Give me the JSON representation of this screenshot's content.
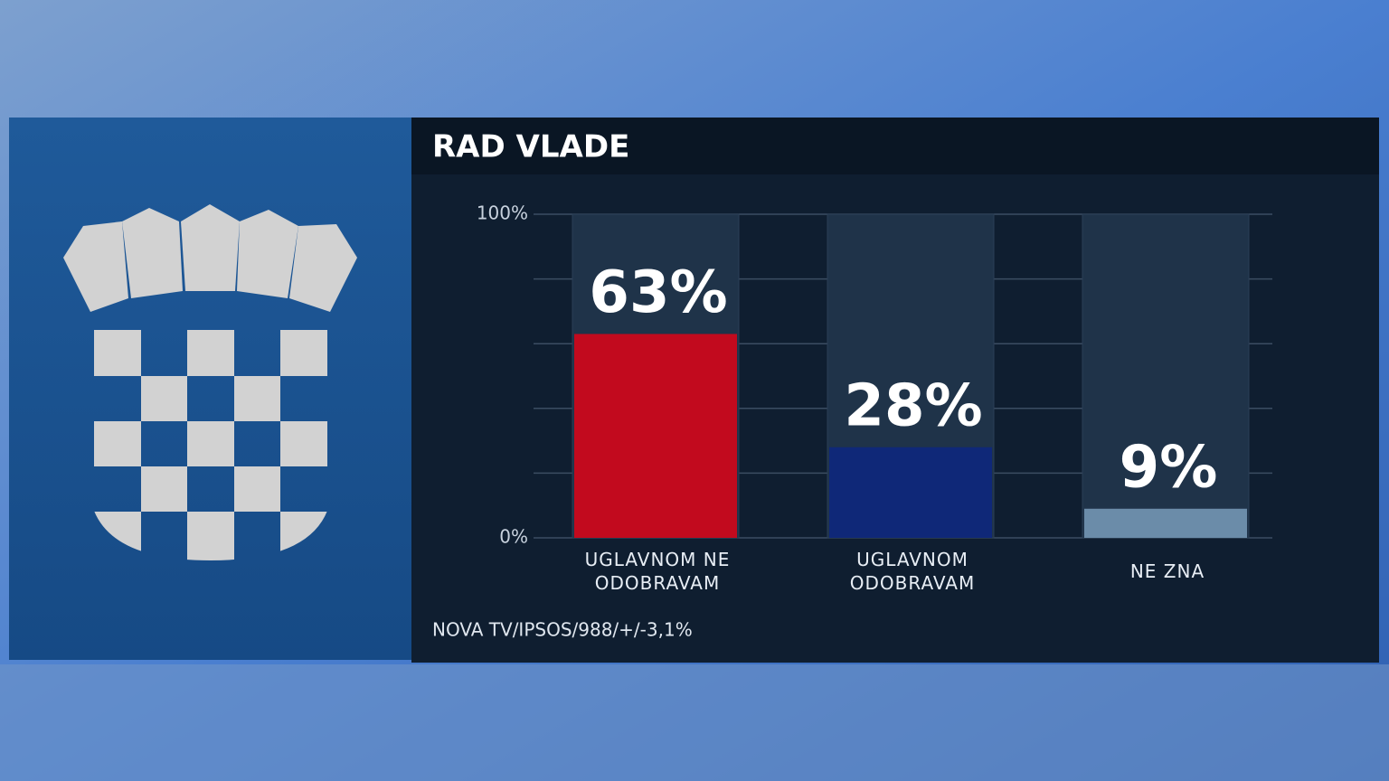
{
  "chart_data": {
    "type": "bar",
    "title": "RAD VLADE",
    "categories": [
      "UGLAVNOM NE ODOBRAVAM",
      "UGLAVNOM ODOBRAVAM",
      "NE ZNA"
    ],
    "values": [
      63,
      28,
      9
    ],
    "value_labels": [
      "63%",
      "28%",
      "9%"
    ],
    "colors": [
      "#c20a1e",
      "#0f2878",
      "#6b8ca9"
    ],
    "ylim": [
      0,
      100
    ],
    "yticks": [
      {
        "value": 0,
        "label": "0%"
      },
      {
        "value": 20,
        "label": null
      },
      {
        "value": 40,
        "label": null
      },
      {
        "value": 60,
        "label": null
      },
      {
        "value": 80,
        "label": null
      },
      {
        "value": 100,
        "label": "100%"
      }
    ],
    "grid": true,
    "source": "NOVA TV/IPSOS/988/+/-3,1%"
  }
}
